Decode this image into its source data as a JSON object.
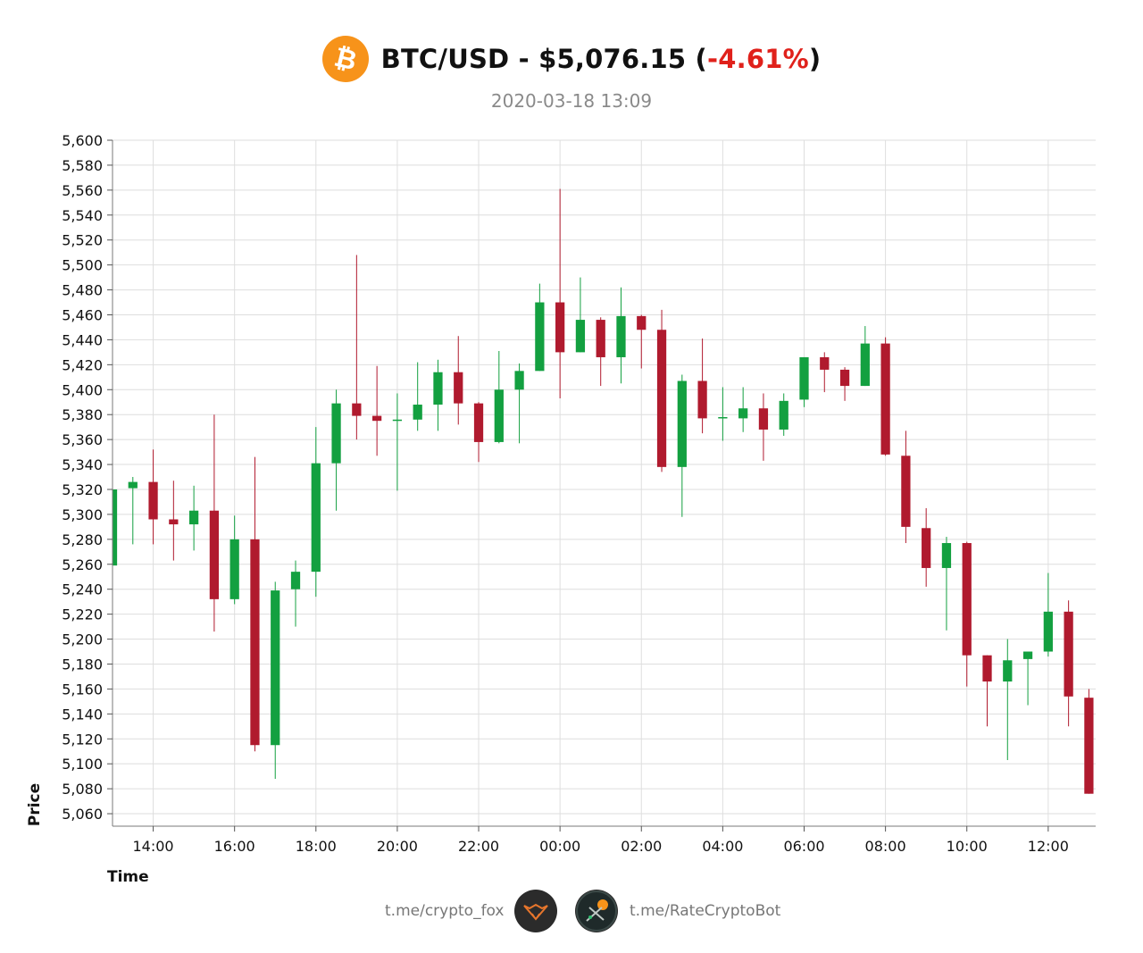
{
  "header": {
    "pair": "BTC/USD",
    "separator": " - ",
    "price": "$5,076.15",
    "open_paren": " (",
    "change": "-4.61%",
    "close_paren": ")",
    "datetime": "2020-03-18 13:09",
    "logo_icon": "bitcoin-icon",
    "change_color": "#e0211b"
  },
  "footer": {
    "left_link": "t.me/crypto_fox",
    "right_link": "t.me/RateCryptoBot",
    "left_avatar_icon": "fox-avatar-icon",
    "right_avatar_icon": "bot-avatar-icon"
  },
  "chart_data": {
    "type": "candlestick",
    "xlabel": "Time",
    "ylabel": "Price",
    "ylim": [
      5050,
      5600
    ],
    "y_ticks": [
      5060,
      5080,
      5100,
      5120,
      5140,
      5160,
      5180,
      5200,
      5220,
      5240,
      5260,
      5280,
      5300,
      5320,
      5340,
      5360,
      5380,
      5400,
      5420,
      5440,
      5460,
      5480,
      5500,
      5520,
      5540,
      5560,
      5580,
      5600
    ],
    "x_range": [
      "2020-03-17 13:00",
      "2020-03-18 13:10"
    ],
    "x_ticks": [
      "14:00",
      "16:00",
      "18:00",
      "20:00",
      "22:00",
      "00:00",
      "02:00",
      "04:00",
      "06:00",
      "08:00",
      "10:00",
      "12:00"
    ],
    "x_tick_times": [
      "2020-03-17 14:00",
      "2020-03-17 16:00",
      "2020-03-17 18:00",
      "2020-03-17 20:00",
      "2020-03-17 22:00",
      "2020-03-18 00:00",
      "2020-03-18 02:00",
      "2020-03-18 04:00",
      "2020-03-18 06:00",
      "2020-03-18 08:00",
      "2020-03-18 10:00",
      "2020-03-18 12:00"
    ],
    "grid": true,
    "up_color": "#13a040",
    "down_color": "#b01a2e",
    "candles": [
      {
        "t": "2020-03-17 13:00",
        "o": 5259,
        "h": 5322,
        "l": 5245,
        "c": 5320
      },
      {
        "t": "2020-03-17 13:30",
        "o": 5321,
        "h": 5330,
        "l": 5276,
        "c": 5326
      },
      {
        "t": "2020-03-17 14:00",
        "o": 5326,
        "h": 5352,
        "l": 5276,
        "c": 5296
      },
      {
        "t": "2020-03-17 14:30",
        "o": 5296,
        "h": 5327,
        "l": 5263,
        "c": 5292
      },
      {
        "t": "2020-03-17 15:00",
        "o": 5292,
        "h": 5323,
        "l": 5271,
        "c": 5303
      },
      {
        "t": "2020-03-17 15:30",
        "o": 5303,
        "h": 5380,
        "l": 5206,
        "c": 5232
      },
      {
        "t": "2020-03-17 16:00",
        "o": 5232,
        "h": 5299,
        "l": 5228,
        "c": 5280
      },
      {
        "t": "2020-03-17 16:30",
        "o": 5280,
        "h": 5346,
        "l": 5110,
        "c": 5115
      },
      {
        "t": "2020-03-17 17:00",
        "o": 5115,
        "h": 5246,
        "l": 5088,
        "c": 5239
      },
      {
        "t": "2020-03-17 17:30",
        "o": 5240,
        "h": 5263,
        "l": 5210,
        "c": 5254
      },
      {
        "t": "2020-03-17 18:00",
        "o": 5254,
        "h": 5370,
        "l": 5234,
        "c": 5341
      },
      {
        "t": "2020-03-17 18:30",
        "o": 5341,
        "h": 5400,
        "l": 5303,
        "c": 5389
      },
      {
        "t": "2020-03-17 19:00",
        "o": 5389,
        "h": 5508,
        "l": 5360,
        "c": 5379
      },
      {
        "t": "2020-03-17 19:30",
        "o": 5379,
        "h": 5419,
        "l": 5347,
        "c": 5375
      },
      {
        "t": "2020-03-17 20:00",
        "o": 5375,
        "h": 5397,
        "l": 5319,
        "c": 5376
      },
      {
        "t": "2020-03-17 20:30",
        "o": 5376,
        "h": 5422,
        "l": 5367,
        "c": 5388
      },
      {
        "t": "2020-03-17 21:00",
        "o": 5388,
        "h": 5424,
        "l": 5367,
        "c": 5414
      },
      {
        "t": "2020-03-17 21:30",
        "o": 5414,
        "h": 5443,
        "l": 5372,
        "c": 5389
      },
      {
        "t": "2020-03-17 22:00",
        "o": 5389,
        "h": 5390,
        "l": 5342,
        "c": 5358
      },
      {
        "t": "2020-03-17 22:30",
        "o": 5358,
        "h": 5431,
        "l": 5357,
        "c": 5400
      },
      {
        "t": "2020-03-17 23:00",
        "o": 5400,
        "h": 5421,
        "l": 5357,
        "c": 5415
      },
      {
        "t": "2020-03-17 23:30",
        "o": 5415,
        "h": 5485,
        "l": 5415,
        "c": 5470
      },
      {
        "t": "2020-03-18 00:00",
        "o": 5470,
        "h": 5561,
        "l": 5393,
        "c": 5430
      },
      {
        "t": "2020-03-18 00:30",
        "o": 5430,
        "h": 5490,
        "l": 5430,
        "c": 5456
      },
      {
        "t": "2020-03-18 01:00",
        "o": 5456,
        "h": 5458,
        "l": 5403,
        "c": 5426
      },
      {
        "t": "2020-03-18 01:30",
        "o": 5426,
        "h": 5482,
        "l": 5405,
        "c": 5459
      },
      {
        "t": "2020-03-18 02:00",
        "o": 5459,
        "h": 5460,
        "l": 5417,
        "c": 5448
      },
      {
        "t": "2020-03-18 02:30",
        "o": 5448,
        "h": 5464,
        "l": 5334,
        "c": 5338
      },
      {
        "t": "2020-03-18 03:00",
        "o": 5338,
        "h": 5412,
        "l": 5298,
        "c": 5407
      },
      {
        "t": "2020-03-18 03:30",
        "o": 5407,
        "h": 5441,
        "l": 5365,
        "c": 5377
      },
      {
        "t": "2020-03-18 04:00",
        "o": 5377,
        "h": 5402,
        "l": 5359,
        "c": 5378
      },
      {
        "t": "2020-03-18 04:30",
        "o": 5377,
        "h": 5402,
        "l": 5366,
        "c": 5385
      },
      {
        "t": "2020-03-18 05:00",
        "o": 5385,
        "h": 5397,
        "l": 5343,
        "c": 5368
      },
      {
        "t": "2020-03-18 05:30",
        "o": 5368,
        "h": 5397,
        "l": 5363,
        "c": 5391
      },
      {
        "t": "2020-03-18 06:00",
        "o": 5392,
        "h": 5426,
        "l": 5386,
        "c": 5426
      },
      {
        "t": "2020-03-18 06:30",
        "o": 5426,
        "h": 5430,
        "l": 5398,
        "c": 5416
      },
      {
        "t": "2020-03-18 07:00",
        "o": 5416,
        "h": 5418,
        "l": 5391,
        "c": 5403
      },
      {
        "t": "2020-03-18 07:30",
        "o": 5403,
        "h": 5451,
        "l": 5403,
        "c": 5437
      },
      {
        "t": "2020-03-18 08:00",
        "o": 5437,
        "h": 5442,
        "l": 5347,
        "c": 5348
      },
      {
        "t": "2020-03-18 08:30",
        "o": 5347,
        "h": 5367,
        "l": 5277,
        "c": 5290
      },
      {
        "t": "2020-03-18 09:00",
        "o": 5289,
        "h": 5305,
        "l": 5242,
        "c": 5257
      },
      {
        "t": "2020-03-18 09:30",
        "o": 5257,
        "h": 5282,
        "l": 5207,
        "c": 5277
      },
      {
        "t": "2020-03-18 10:00",
        "o": 5277,
        "h": 5278,
        "l": 5162,
        "c": 5187
      },
      {
        "t": "2020-03-18 10:30",
        "o": 5187,
        "h": 5187,
        "l": 5130,
        "c": 5166
      },
      {
        "t": "2020-03-18 11:00",
        "o": 5166,
        "h": 5200,
        "l": 5103,
        "c": 5183
      },
      {
        "t": "2020-03-18 11:30",
        "o": 5184,
        "h": 5190,
        "l": 5147,
        "c": 5190
      },
      {
        "t": "2020-03-18 12:00",
        "o": 5190,
        "h": 5253,
        "l": 5186,
        "c": 5222
      },
      {
        "t": "2020-03-18 12:30",
        "o": 5222,
        "h": 5231,
        "l": 5130,
        "c": 5154
      },
      {
        "t": "2020-03-18 13:00",
        "o": 5153,
        "h": 5160,
        "l": 5076,
        "c": 5076
      }
    ]
  }
}
